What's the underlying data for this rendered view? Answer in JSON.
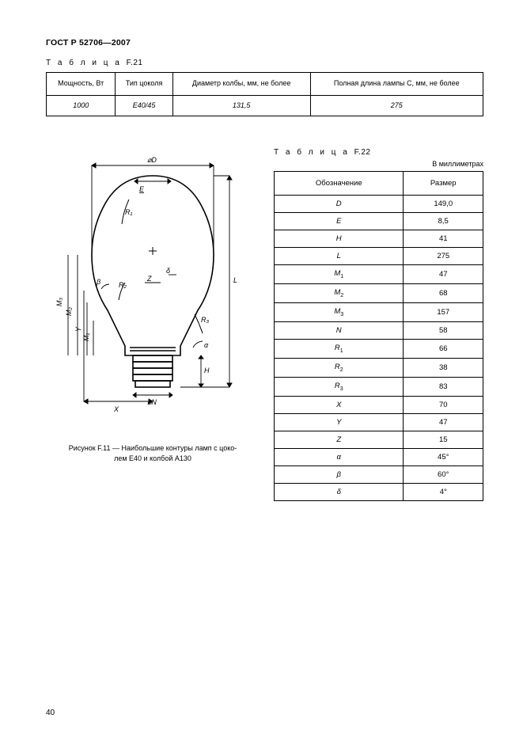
{
  "header": "ГОСТ Р 52706—2007",
  "table21": {
    "label_word": "Т а б л и ц а",
    "label_suffix": "F.21",
    "columns": [
      "Мощность, Вт",
      "Тип цоколя",
      "Диаметр колбы, мм, не более",
      "Полная длина лампы С, мм, не более"
    ],
    "row": [
      "1000",
      "E40/45",
      "131,5",
      "275"
    ]
  },
  "figure": {
    "caption_line1": "Рисунок F.11 — Наибольшие контуры ламп с цоко-",
    "caption_line2": "лем E40 и колбой А130",
    "labels": {
      "diam_d": "⌀D",
      "diam_n": "⌀N",
      "E": "E",
      "H": "H",
      "L": "L",
      "M1": "M₁",
      "M2": "M₂",
      "M3": "M₃",
      "N": "N",
      "R1": "R₁",
      "R2": "R₂",
      "R3": "R₃",
      "X": "X",
      "Y": "Y",
      "Z": "Z",
      "alpha": "α",
      "beta": "β",
      "delta": "δ"
    }
  },
  "table22": {
    "label_word": "Т а б л и ц а",
    "label_suffix": "F.22",
    "units": "В миллиметрах",
    "col1": "Обозначение",
    "col2": "Размер",
    "rows": [
      {
        "sym": "D",
        "val": "149,0"
      },
      {
        "sym": "E",
        "val": "8,5"
      },
      {
        "sym": "H",
        "val": "41"
      },
      {
        "sym": "L",
        "val": "275"
      },
      {
        "sym": "M<sub>1</sub>",
        "val": "47"
      },
      {
        "sym": "M<sub>2</sub>",
        "val": "68"
      },
      {
        "sym": "M<sub>3</sub>",
        "val": "157"
      },
      {
        "sym": "N",
        "val": "58"
      },
      {
        "sym": "R<sub>1</sub>",
        "val": "66"
      },
      {
        "sym": "R<sub>2</sub>",
        "val": "38"
      },
      {
        "sym": "R<sub>3</sub>",
        "val": "83"
      },
      {
        "sym": "X",
        "val": "70"
      },
      {
        "sym": "Y",
        "val": "47"
      },
      {
        "sym": "Z",
        "val": "15"
      },
      {
        "sym": "α",
        "val": "45°"
      },
      {
        "sym": "β",
        "val": "60°"
      },
      {
        "sym": "δ",
        "val": "4°"
      }
    ]
  },
  "page_number": "40",
  "colors": {
    "line": "#000000",
    "bg": "#ffffff"
  }
}
